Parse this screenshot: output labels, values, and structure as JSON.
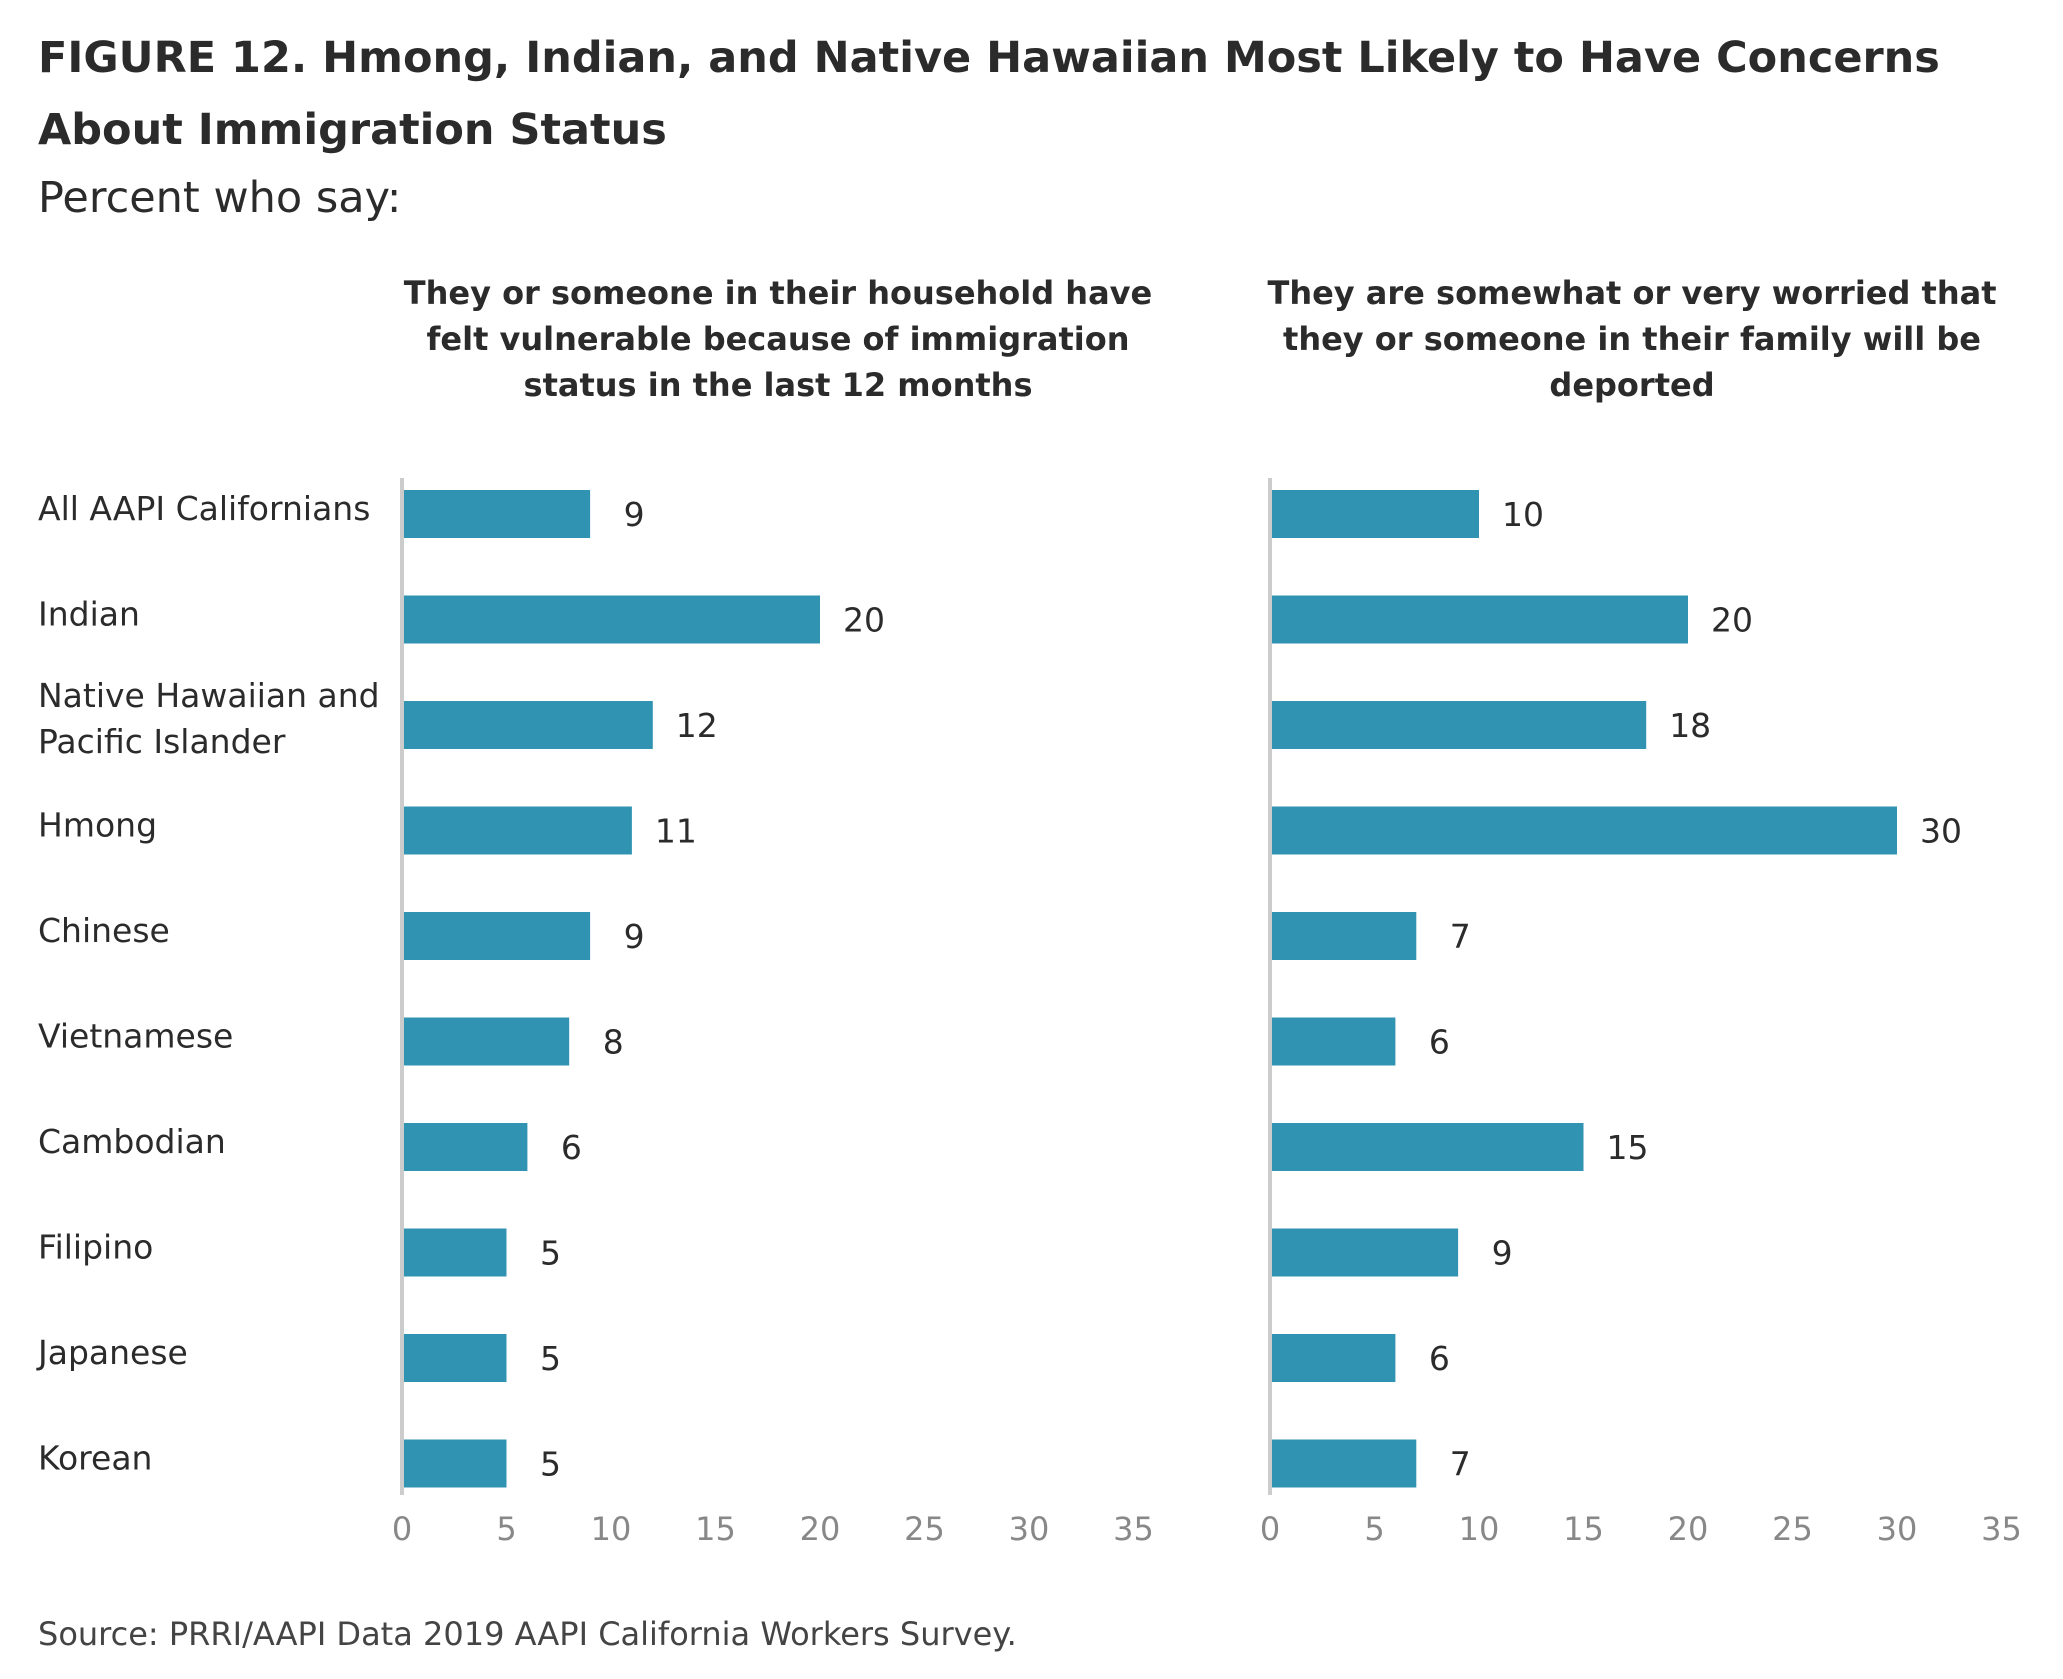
{
  "figure": {
    "title": "FIGURE 12.  Hmong, Indian, and Native Hawaiian Most Likely to Have Concerns About Immigration Status",
    "subtitle": "Percent who say:",
    "source": "Source: PRRI/AAPI Data 2019 AAPI California Workers Survey."
  },
  "colors": {
    "bar": "#3193b2",
    "axis": "#cccccc",
    "tick_text": "#888888",
    "text": "#2b2b2b"
  },
  "chart_data": [
    {
      "type": "bar",
      "orientation": "horizontal",
      "title": "They or someone in their household have felt vulnerable because of immigration status in the last 12 months",
      "categories": [
        "All AAPI Californians",
        "Indian",
        "Native Hawaiian and Pacific Islander",
        "Hmong",
        "Chinese",
        "Vietnamese",
        "Cambodian",
        "Filipino",
        "Japanese",
        "Korean"
      ],
      "values": [
        9,
        20,
        12,
        11,
        9,
        8,
        6,
        5,
        5,
        5
      ],
      "xlim": [
        0,
        35
      ],
      "xticks": [
        0,
        5,
        10,
        15,
        20,
        25,
        30,
        35
      ],
      "grid": false,
      "data_labels": true
    },
    {
      "type": "bar",
      "orientation": "horizontal",
      "title": "They are somewhat or very worried that they or someone in their family will be deported",
      "categories": [
        "All AAPI Californians",
        "Indian",
        "Native Hawaiian and Pacific Islander",
        "Hmong",
        "Chinese",
        "Vietnamese",
        "Cambodian",
        "Filipino",
        "Japanese",
        "Korean"
      ],
      "values": [
        10,
        20,
        18,
        30,
        7,
        6,
        15,
        9,
        6,
        7
      ],
      "xlim": [
        0,
        35
      ],
      "xticks": [
        0,
        5,
        10,
        15,
        20,
        25,
        30,
        35
      ],
      "grid": false,
      "data_labels": true
    }
  ]
}
